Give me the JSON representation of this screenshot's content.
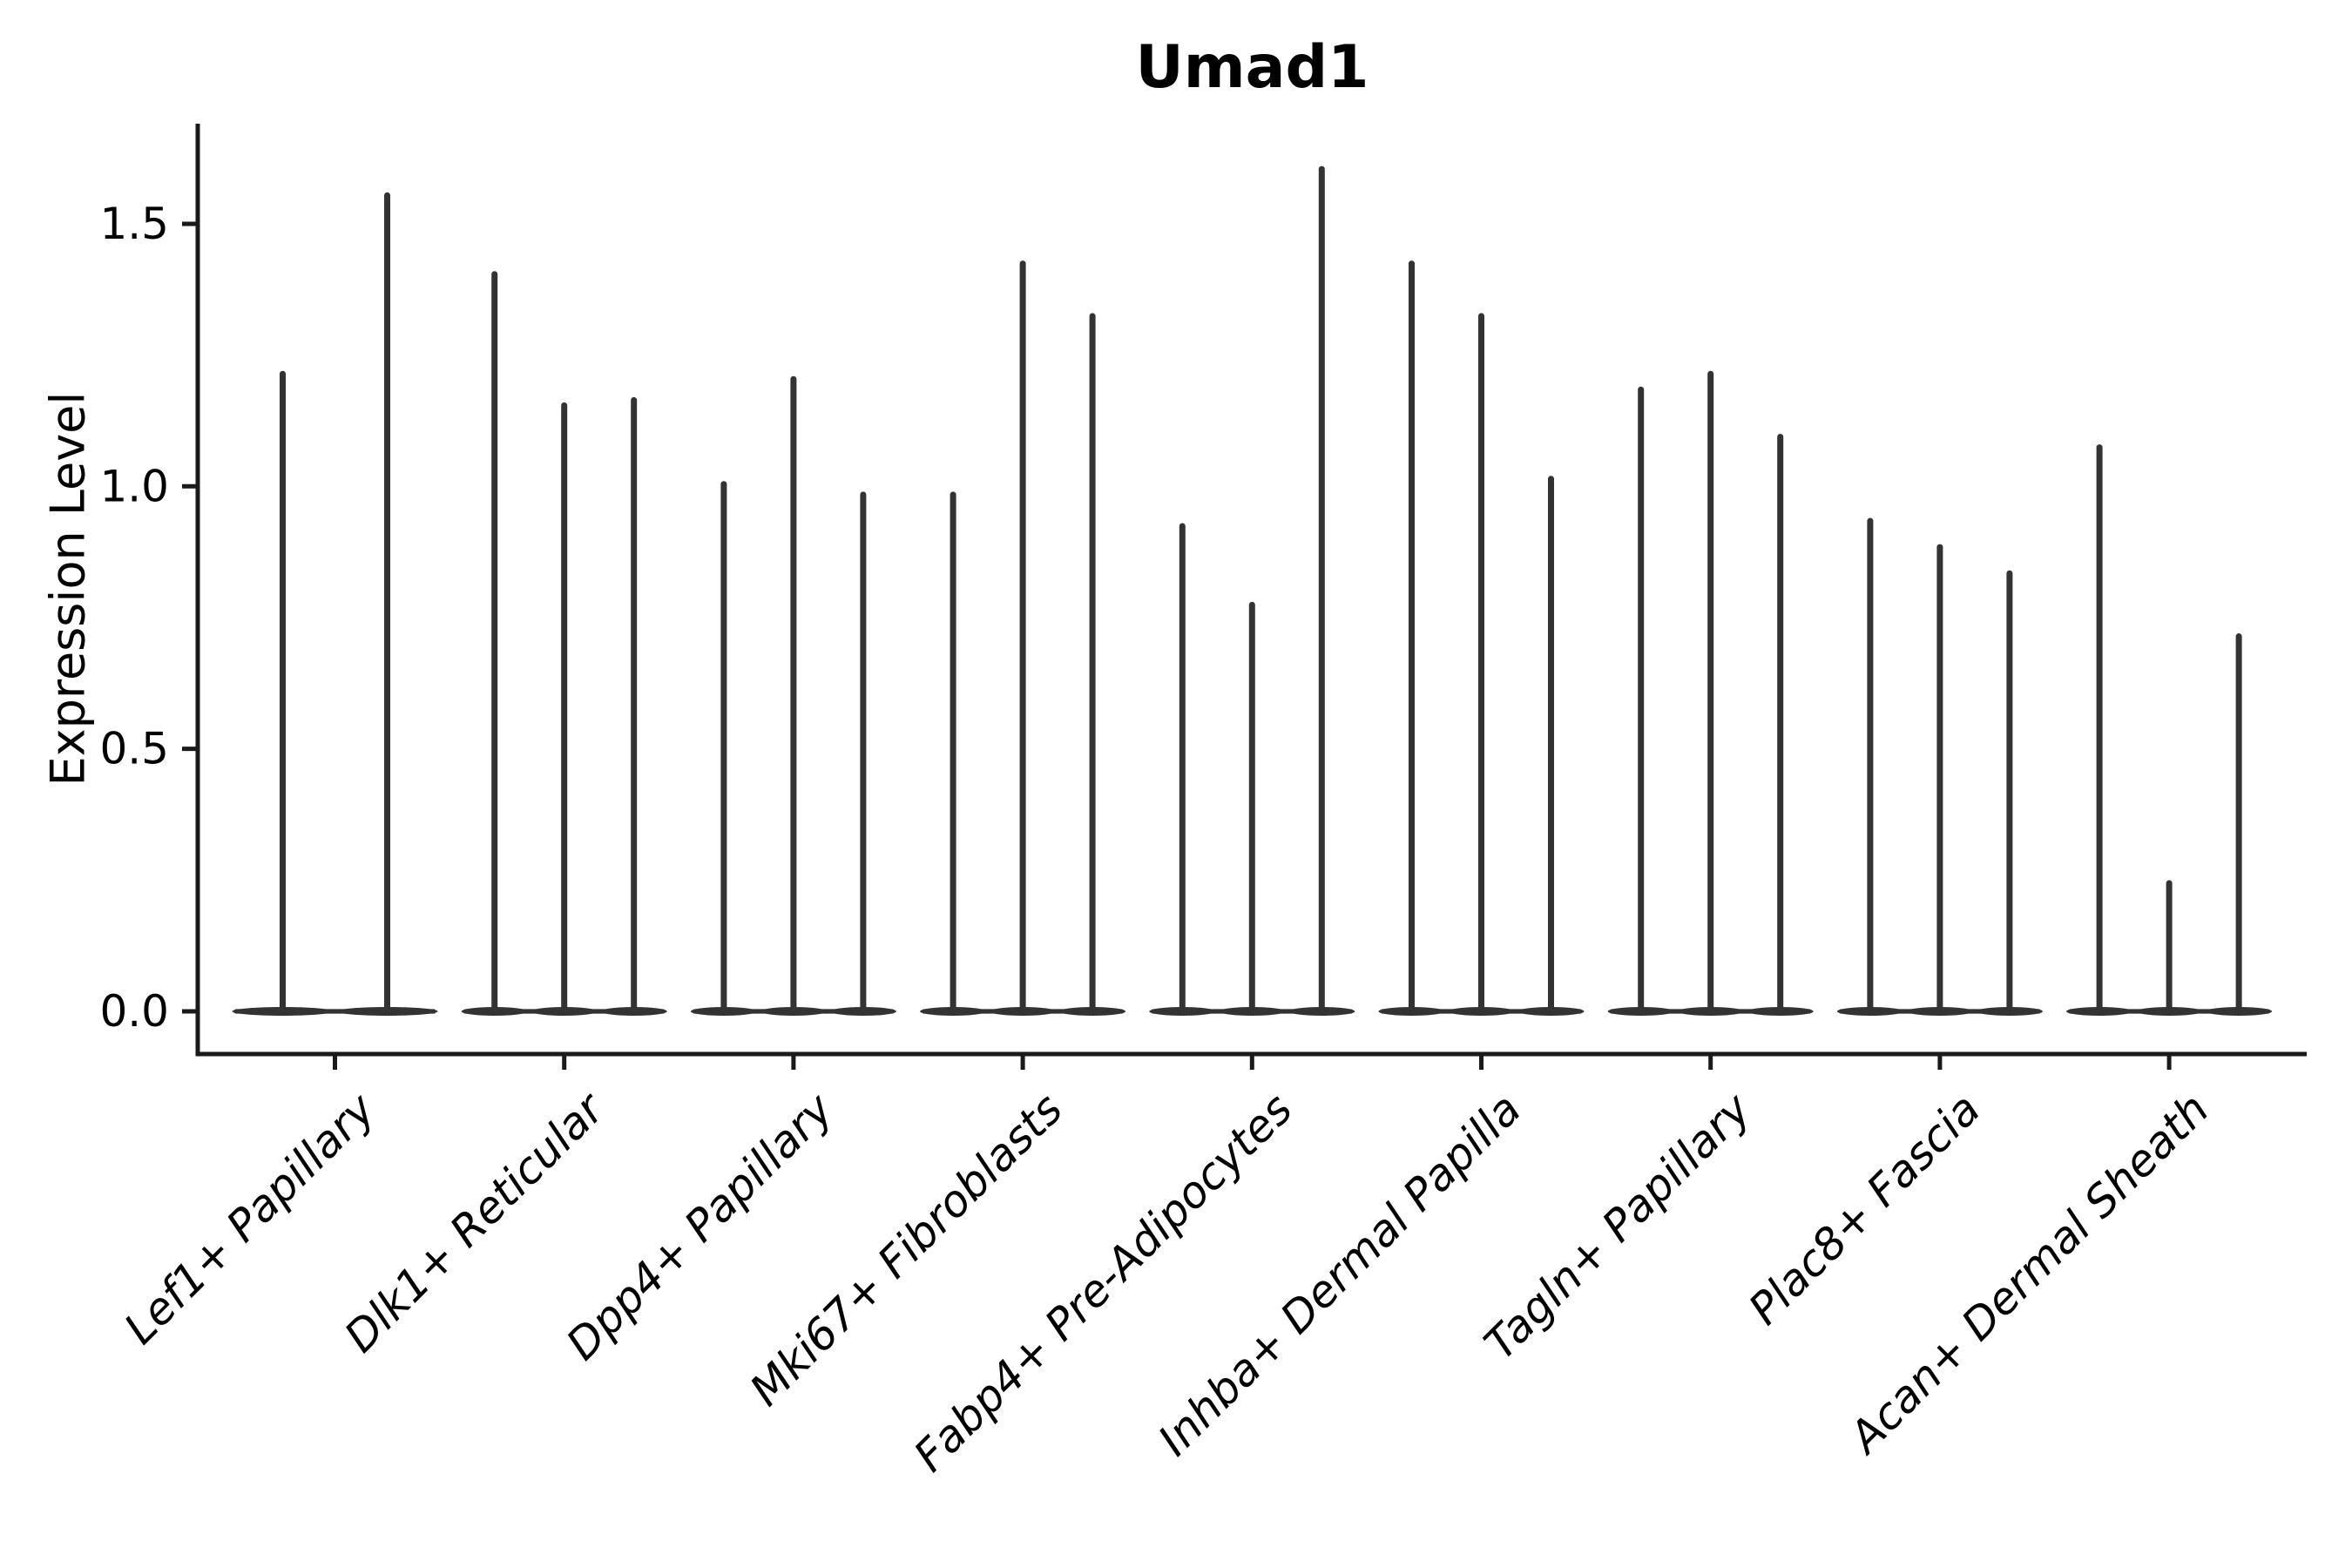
{
  "figure": {
    "title": "Umad1",
    "y_axis_label": "Expression Level"
  },
  "colors": {
    "violin_fill": "#333333",
    "axis_line": "#1a1a1a",
    "text": "#000000",
    "background": "#ffffff"
  },
  "chart_data": {
    "type": "violin",
    "title": "Umad1",
    "xlabel": "",
    "ylabel": "Expression Level",
    "grid": false,
    "legend_position": "none",
    "y_tick_labels": [
      "0.0",
      "0.5",
      "1.0",
      "1.5"
    ],
    "y_tick_values": [
      0.0,
      0.5,
      1.0,
      1.5
    ],
    "ylim": [
      -0.08,
      1.69
    ],
    "categories": [
      "Lef1+ Papillary",
      "Dlk1+ Reticular",
      "Dpp4+ Papillary",
      "Mki67+ Fibroblasts",
      "Fabp4+ Pre-Adipocytes",
      "Inhba+ Dermal Papilla",
      "Tagln+ Papillary",
      "Plac8+ Fascia",
      "Acan+ Dermal Sheath"
    ],
    "series": [
      {
        "category": "Lef1+ Papillary",
        "violin_max_expression": [
          1.22,
          1.56
        ]
      },
      {
        "category": "Dlk1+ Reticular",
        "violin_max_expression": [
          1.41,
          1.16,
          1.17
        ]
      },
      {
        "category": "Dpp4+ Papillary",
        "violin_max_expression": [
          1.01,
          1.21,
          0.99
        ]
      },
      {
        "category": "Mki67+ Fibroblasts",
        "violin_max_expression": [
          0.99,
          1.43,
          1.33
        ]
      },
      {
        "category": "Fabp4+ Pre-Adipocytes",
        "violin_max_expression": [
          0.93,
          0.78,
          1.61
        ]
      },
      {
        "category": "Inhba+ Dermal Papilla",
        "violin_max_expression": [
          1.43,
          1.33,
          1.02
        ]
      },
      {
        "category": "Tagln+ Papillary",
        "violin_max_expression": [
          1.19,
          1.22,
          1.1
        ]
      },
      {
        "category": "Plac8+ Fascia",
        "violin_max_expression": [
          0.94,
          0.89,
          0.84
        ]
      },
      {
        "category": "Acan+ Dermal Sheath",
        "violin_max_expression": [
          1.08,
          0.25,
          0.72
        ]
      }
    ],
    "violin_baseline_value": 0.0
  }
}
